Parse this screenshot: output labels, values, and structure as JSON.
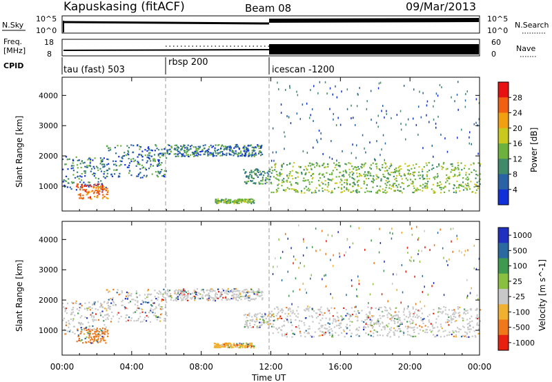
{
  "header": {
    "station": "Kapuskasing (fitACF)",
    "beam": "Beam 08",
    "date": "09/Mar/2013"
  },
  "noise_panel": {
    "left_label": "N.Sky",
    "right_label": "N.Search",
    "left_ticks": [
      "10^5",
      "10^0"
    ],
    "right_ticks": [
      "10^5",
      "10^0"
    ]
  },
  "freq_panel": {
    "left_label_line1": "Freq.",
    "left_label_line2": "[MHz]",
    "left_ticks": [
      "18",
      "8"
    ],
    "right_label": "Nave",
    "right_ticks": [
      "60",
      "0"
    ]
  },
  "cpid_panel": {
    "label": "CPID",
    "programs": [
      {
        "name": "tau (fast) 503",
        "start_hour": 0
      },
      {
        "name": "rbsp 200",
        "start_hour": 6
      },
      {
        "name": "icescan -1200",
        "start_hour": 12
      }
    ]
  },
  "power_panel": {
    "ylabel": "Slant Range [km]",
    "yticks": [
      "1000",
      "2000",
      "3000",
      "4000"
    ],
    "colorbar_label": "Power [dB]",
    "colorbar_ticks": [
      "4",
      "8",
      "12",
      "16",
      "20",
      "24",
      "28"
    ],
    "colors": [
      "#1030d8",
      "#2a62a6",
      "#3f8a6a",
      "#6cb23c",
      "#c8c81e",
      "#f0a010",
      "#f06010",
      "#e81010"
    ]
  },
  "velocity_panel": {
    "ylabel": "Slant Range [km]",
    "yticks": [
      "1000",
      "2000",
      "3000",
      "4000"
    ],
    "colorbar_label": "Velocity [m s^-1]",
    "colorbar_ticks": [
      "1000",
      "500",
      "100",
      "25",
      "-25",
      "-100",
      "-500",
      "-1000"
    ],
    "colors": [
      "#2030c0",
      "#2a6aa0",
      "#3f9a50",
      "#8ac040",
      "#c8c8c8",
      "#f0b030",
      "#f07818",
      "#e82010"
    ]
  },
  "xaxis": {
    "label": "Time UT",
    "ticks": [
      "00:00",
      "04:00",
      "08:00",
      "12:00",
      "16:00",
      "20:00",
      "00:00"
    ]
  },
  "chart_data": {
    "type": "heatmap",
    "title": "Kapuskasing (fitACF)  Beam 08  09/Mar/2013",
    "xlabel": "Time UT",
    "ylabel": "Slant Range [km]",
    "xlim_hours": [
      0,
      24
    ],
    "ylim_km": [
      180,
      4600
    ],
    "program_boundaries_hours": [
      6,
      12
    ],
    "scatter_regions": [
      {
        "t0": 0.0,
        "t1": 2.5,
        "r0": 900,
        "r1": 2000,
        "desc": "low"
      },
      {
        "t0": 0.8,
        "t1": 2.6,
        "r0": 600,
        "r1": 1100,
        "power": 28,
        "velocity": -300
      },
      {
        "t0": 2.5,
        "t1": 6.0,
        "r0": 1300,
        "r1": 2400
      },
      {
        "t0": 6.0,
        "t1": 11.5,
        "r0": 2000,
        "r1": 2400
      },
      {
        "t0": 8.7,
        "t1": 11.0,
        "r0": 450,
        "r1": 600,
        "power": 16,
        "velocity": -100
      },
      {
        "t0": 10.4,
        "t1": 12.0,
        "r0": 1100,
        "r1": 1600,
        "power": 12,
        "velocity": 50
      },
      {
        "t0": 12.0,
        "t1": 24.0,
        "r0": 800,
        "r1": 1800,
        "power": 14,
        "velocity": 0
      }
    ]
  }
}
